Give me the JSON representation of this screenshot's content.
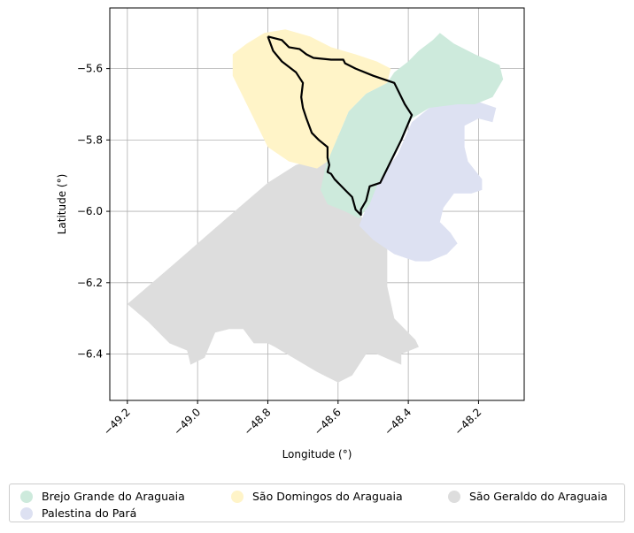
{
  "chart_data": {
    "type": "map",
    "xlabel": "Longitude (°)",
    "ylabel": "Latitude (°)",
    "xlim": [
      -49.25,
      -48.07
    ],
    "ylim": [
      -6.53,
      -5.43
    ],
    "xticks": [
      -49.2,
      -49.0,
      -48.8,
      -48.6,
      -48.4,
      -48.2
    ],
    "xtick_labels": [
      "−49.2",
      "−49.0",
      "−48.8",
      "−48.6",
      "−48.4",
      "−48.2"
    ],
    "yticks": [
      -5.6,
      -5.8,
      -6.0,
      -6.2,
      -6.4
    ],
    "ytick_labels": [
      "−5.6",
      "−5.8",
      "−6.0",
      "−6.2",
      "−6.4"
    ],
    "grid": true,
    "legend_placement": "bottom-center",
    "regions": [
      {
        "name": "São Geraldo do Araguaia",
        "color": "#dddddd",
        "coords": [
          [
            -48.65,
            -5.85
          ],
          [
            -48.6,
            -5.87
          ],
          [
            -48.56,
            -5.98
          ],
          [
            -48.53,
            -6.02
          ],
          [
            -48.46,
            -6.1
          ],
          [
            -48.46,
            -6.21
          ],
          [
            -48.44,
            -6.3
          ],
          [
            -48.38,
            -6.36
          ],
          [
            -48.37,
            -6.38
          ],
          [
            -48.42,
            -6.4
          ],
          [
            -48.42,
            -6.43
          ],
          [
            -48.49,
            -6.4
          ],
          [
            -48.52,
            -6.4
          ],
          [
            -48.56,
            -6.46
          ],
          [
            -48.6,
            -6.48
          ],
          [
            -48.66,
            -6.45
          ],
          [
            -48.78,
            -6.38
          ],
          [
            -48.8,
            -6.37
          ],
          [
            -48.84,
            -6.37
          ],
          [
            -48.87,
            -6.33
          ],
          [
            -48.91,
            -6.33
          ],
          [
            -48.95,
            -6.34
          ],
          [
            -48.98,
            -6.41
          ],
          [
            -49.02,
            -6.43
          ],
          [
            -49.03,
            -6.39
          ],
          [
            -49.08,
            -6.37
          ],
          [
            -49.14,
            -6.31
          ],
          [
            -49.2,
            -6.26
          ],
          [
            -49.07,
            -6.15
          ],
          [
            -48.93,
            -6.03
          ],
          [
            -48.8,
            -5.92
          ],
          [
            -48.72,
            -5.87
          ]
        ]
      },
      {
        "name": "Palestina do Pará",
        "color": "#dde1f2",
        "coords": [
          [
            -48.39,
            -5.75
          ],
          [
            -48.34,
            -5.71
          ],
          [
            -48.27,
            -5.69
          ],
          [
            -48.21,
            -5.69
          ],
          [
            -48.15,
            -5.71
          ],
          [
            -48.16,
            -5.75
          ],
          [
            -48.2,
            -5.74
          ],
          [
            -48.24,
            -5.76
          ],
          [
            -48.24,
            -5.82
          ],
          [
            -48.23,
            -5.86
          ],
          [
            -48.19,
            -5.91
          ],
          [
            -48.19,
            -5.94
          ],
          [
            -48.22,
            -5.95
          ],
          [
            -48.27,
            -5.95
          ],
          [
            -48.3,
            -5.99
          ],
          [
            -48.31,
            -6.03
          ],
          [
            -48.28,
            -6.06
          ],
          [
            -48.26,
            -6.09
          ],
          [
            -48.29,
            -6.12
          ],
          [
            -48.34,
            -6.14
          ],
          [
            -48.38,
            -6.14
          ],
          [
            -48.44,
            -6.12
          ],
          [
            -48.5,
            -6.08
          ],
          [
            -48.54,
            -6.04
          ],
          [
            -48.49,
            -5.92
          ],
          [
            -48.43,
            -5.84
          ]
        ]
      },
      {
        "name": "Brejo Grande do Araguaia",
        "color": "#cdeadc",
        "coords": [
          [
            -48.46,
            -5.64
          ],
          [
            -48.44,
            -5.61
          ],
          [
            -48.4,
            -5.58
          ],
          [
            -48.37,
            -5.55
          ],
          [
            -48.33,
            -5.52
          ],
          [
            -48.31,
            -5.5
          ],
          [
            -48.27,
            -5.53
          ],
          [
            -48.21,
            -5.56
          ],
          [
            -48.14,
            -5.59
          ],
          [
            -48.13,
            -5.63
          ],
          [
            -48.16,
            -5.68
          ],
          [
            -48.21,
            -5.7
          ],
          [
            -48.26,
            -5.7
          ],
          [
            -48.34,
            -5.71
          ],
          [
            -48.39,
            -5.74
          ],
          [
            -48.44,
            -5.84
          ],
          [
            -48.49,
            -5.93
          ],
          [
            -48.51,
            -5.98
          ],
          [
            -48.54,
            -6.02
          ],
          [
            -48.58,
            -6.0
          ],
          [
            -48.63,
            -5.98
          ],
          [
            -48.65,
            -5.94
          ],
          [
            -48.63,
            -5.85
          ],
          [
            -48.6,
            -5.79
          ],
          [
            -48.57,
            -5.72
          ],
          [
            -48.52,
            -5.67
          ]
        ]
      },
      {
        "name": "São Domingos do Araguaia",
        "color": "#fff4c8",
        "coords": [
          [
            -48.81,
            -5.5
          ],
          [
            -48.75,
            -5.49
          ],
          [
            -48.68,
            -5.51
          ],
          [
            -48.62,
            -5.54
          ],
          [
            -48.55,
            -5.56
          ],
          [
            -48.49,
            -5.58
          ],
          [
            -48.45,
            -5.6
          ],
          [
            -48.46,
            -5.64
          ],
          [
            -48.52,
            -5.67
          ],
          [
            -48.57,
            -5.72
          ],
          [
            -48.6,
            -5.79
          ],
          [
            -48.63,
            -5.86
          ],
          [
            -48.66,
            -5.88
          ],
          [
            -48.74,
            -5.86
          ],
          [
            -48.8,
            -5.82
          ],
          [
            -48.83,
            -5.76
          ],
          [
            -48.86,
            -5.7
          ],
          [
            -48.88,
            -5.66
          ],
          [
            -48.9,
            -5.62
          ],
          [
            -48.9,
            -5.56
          ],
          [
            -48.86,
            -5.53
          ]
        ]
      }
    ],
    "outline": [
      [
        -48.8,
        -5.51
      ],
      [
        -48.76,
        -5.52
      ],
      [
        -48.74,
        -5.54
      ],
      [
        -48.71,
        -5.545
      ],
      [
        -48.69,
        -5.56
      ],
      [
        -48.67,
        -5.57
      ],
      [
        -48.62,
        -5.575
      ],
      [
        -48.6,
        -5.575
      ],
      [
        -48.585,
        -5.575
      ],
      [
        -48.58,
        -5.585
      ],
      [
        -48.55,
        -5.6
      ],
      [
        -48.5,
        -5.62
      ],
      [
        -48.44,
        -5.64
      ],
      [
        -48.41,
        -5.7
      ],
      [
        -48.39,
        -5.73
      ],
      [
        -48.42,
        -5.8
      ],
      [
        -48.455,
        -5.87
      ],
      [
        -48.48,
        -5.92
      ],
      [
        -48.51,
        -5.93
      ],
      [
        -48.52,
        -5.97
      ],
      [
        -48.535,
        -5.995
      ],
      [
        -48.535,
        -6.01
      ],
      [
        -48.55,
        -5.995
      ],
      [
        -48.56,
        -5.96
      ],
      [
        -48.58,
        -5.94
      ],
      [
        -48.61,
        -5.91
      ],
      [
        -48.62,
        -5.895
      ],
      [
        -48.63,
        -5.89
      ],
      [
        -48.625,
        -5.87
      ],
      [
        -48.63,
        -5.85
      ],
      [
        -48.63,
        -5.82
      ],
      [
        -48.655,
        -5.8
      ],
      [
        -48.675,
        -5.78
      ],
      [
        -48.69,
        -5.74
      ],
      [
        -48.7,
        -5.71
      ],
      [
        -48.705,
        -5.68
      ],
      [
        -48.7,
        -5.64
      ],
      [
        -48.72,
        -5.61
      ],
      [
        -48.76,
        -5.58
      ],
      [
        -48.785,
        -5.55
      ],
      [
        -48.8,
        -5.51
      ]
    ]
  },
  "legend": [
    {
      "label": "Brejo Grande do Araguaia",
      "color": "#cdeadc"
    },
    {
      "label": "São Domingos do Araguaia",
      "color": "#fff4c8"
    },
    {
      "label": "São Geraldo do Araguaia",
      "color": "#dddddd"
    },
    {
      "label": "Palestina do Pará",
      "color": "#dde1f2"
    }
  ]
}
